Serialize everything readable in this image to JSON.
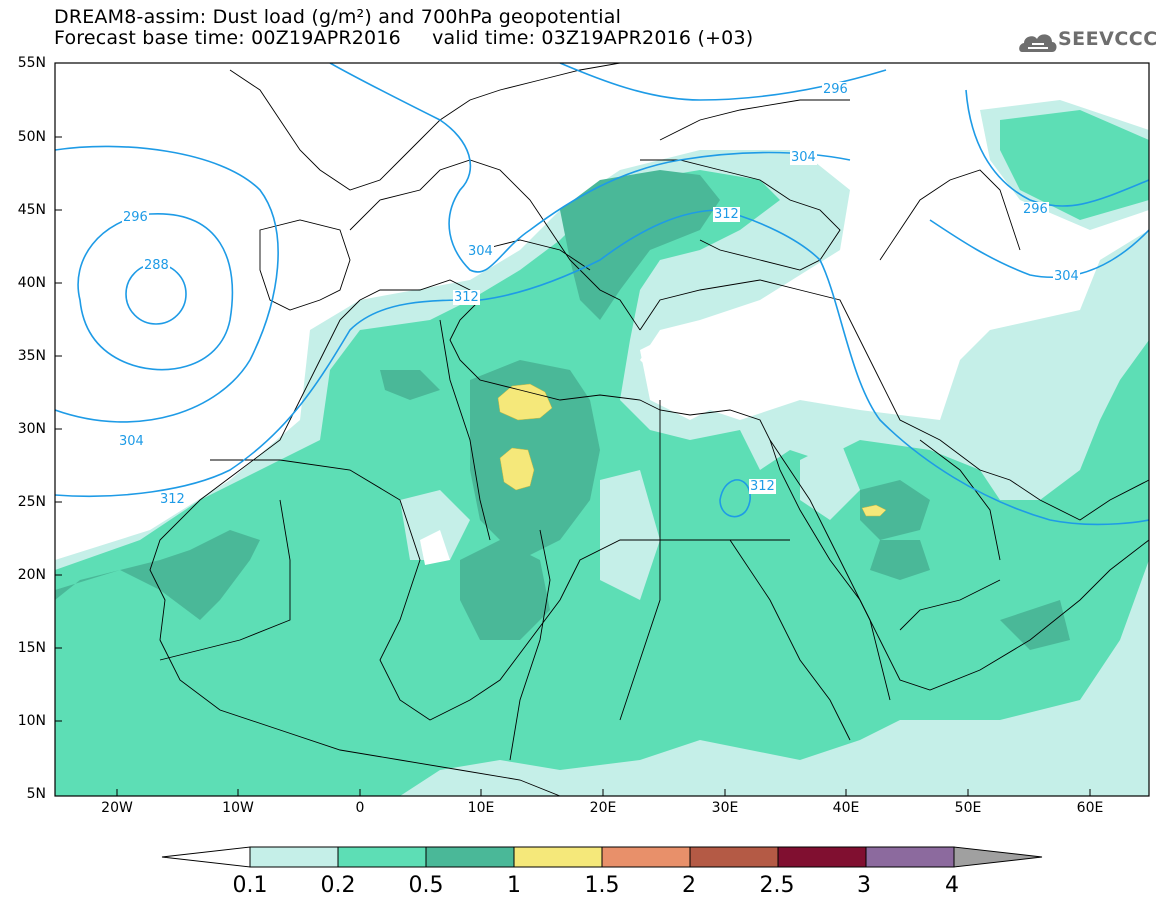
{
  "title": {
    "line1": "DREAM8-assim: Dust load (g/m²) and 700hPa geopotential",
    "line2": "Forecast base time: 00Z19APR2016     valid time: 03Z19APR2016 (+03)"
  },
  "logo": {
    "text": "SEEVCCC",
    "icon": "cloud-icon"
  },
  "axes": {
    "lat_labels": [
      "55N",
      "50N",
      "45N",
      "40N",
      "35N",
      "30N",
      "25N",
      "20N",
      "15N",
      "10N",
      "5N"
    ],
    "lon_labels": [
      "20W",
      "10W",
      "0",
      "10E",
      "20E",
      "30E",
      "40E",
      "50E",
      "60E"
    ]
  },
  "contours": {
    "labels": [
      "296",
      "288",
      "304",
      "312",
      "304",
      "312",
      "296",
      "304",
      "312",
      "304",
      "296",
      "312"
    ]
  },
  "colorbar": {
    "ticks": [
      "0.1",
      "0.2",
      "0.5",
      "1",
      "1.5",
      "2",
      "2.5",
      "3",
      "4"
    ],
    "colors": [
      "#ffffff",
      "#c5efe8",
      "#5ddeb5",
      "#4ab898",
      "#f5e87a",
      "#e8906a",
      "#b45a45",
      "#800f30",
      "#8c6a9e",
      "#a0a0a0"
    ]
  },
  "colors": {
    "contour": "#1e9be6",
    "dust_0_1": "#c5efe8",
    "dust_0_2": "#5ddeb5",
    "dust_0_5": "#4ab898",
    "dust_1": "#f5e87a"
  }
}
